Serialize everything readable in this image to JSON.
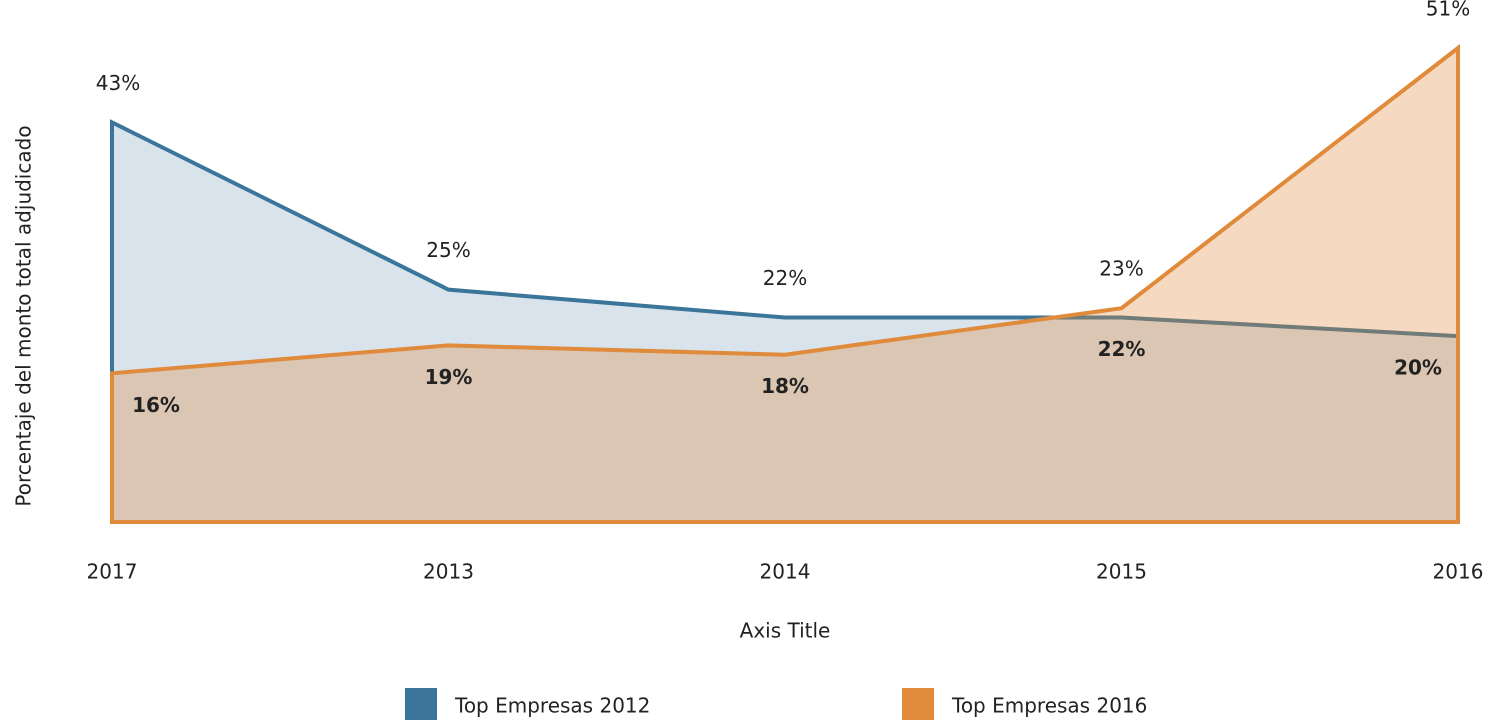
{
  "chart_data": {
    "type": "area",
    "categories": [
      "2017",
      "2013",
      "2014",
      "2015",
      "2016"
    ],
    "series": [
      {
        "name": "Top Empresas 2012",
        "color": "#3b7599",
        "values": [
          43,
          25,
          22,
          22,
          20
        ],
        "value_labels": [
          "43%",
          "25%",
          "22%",
          "22%",
          "20%"
        ]
      },
      {
        "name": "Top Empresas 2016",
        "color": "#e08a3c",
        "values": [
          16,
          19,
          18,
          23,
          51
        ],
        "value_labels": [
          "16%",
          "19%",
          "18%",
          "23%",
          "51%"
        ]
      }
    ],
    "x_label": "Axis Title",
    "y_label": "Porcentaje del monto total adjudicado",
    "legend": "bottom"
  }
}
